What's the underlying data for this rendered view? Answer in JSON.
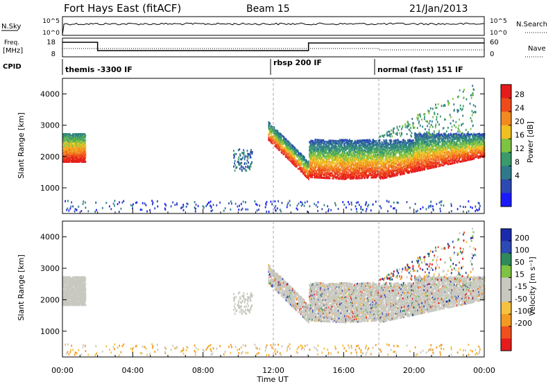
{
  "header": {
    "title": "Fort Hays East (fitACF)",
    "beam": "Beam 15",
    "date": "21/Jan/2013"
  },
  "colors": {
    "power_scale": [
      "#1a1aff",
      "#2d49b4",
      "#2f7a8a",
      "#3a9a6a",
      "#7dc241",
      "#f0c020",
      "#f28a20",
      "#ef4a1c",
      "#e61b1b"
    ],
    "velocity_scale": [
      "#e61b1b",
      "#f05020",
      "#f39a22",
      "#f6c040",
      "#c8c8c0",
      "#c8c8c0",
      "#7dc241",
      "#2f8a5a",
      "#2d49b4",
      "#1a2aaa"
    ],
    "ground_scatter": "#c8c8c0"
  },
  "top_panels": {
    "nsky": {
      "label": "N.Sky",
      "ticks": [
        "10^5",
        "10^0"
      ]
    },
    "nsearch": {
      "label": "N.Search",
      "ticks": [
        "10^5",
        "10^0"
      ]
    },
    "freq": {
      "label_line1": "Freq.",
      "label_line2": "[MHz]",
      "ticks": [
        "18",
        "8"
      ]
    },
    "nave": {
      "label": "Nave",
      "ticks": [
        "60",
        "0"
      ]
    },
    "cpid": {
      "label": "CPID",
      "segments": [
        {
          "start_hour": 0,
          "text": "themis -3300 IF"
        },
        {
          "start_hour": 12,
          "text": "rbsp 200 IF"
        },
        {
          "start_hour": 18,
          "text": "normal (fast) 151 IF"
        }
      ]
    }
  },
  "chart_data": [
    {
      "type": "heatmap",
      "name": "Power",
      "ylabel": "Slant Range [km]",
      "yticks": [
        "4000",
        "3000",
        "2000",
        "1000"
      ],
      "ylim": [
        180,
        4500
      ],
      "xlim": [
        0,
        24
      ],
      "colorbar": {
        "label": "Power [dB]",
        "ticks": [
          "28",
          "24",
          "20",
          "16",
          "12",
          "8",
          "4"
        ],
        "range": [
          0,
          32
        ]
      }
    },
    {
      "type": "heatmap",
      "name": "Velocity",
      "ylabel": "Slant Range [km]",
      "yticks": [
        "4000",
        "3000",
        "2000",
        "1000"
      ],
      "ylim": [
        180,
        4500
      ],
      "xlim": [
        0,
        24
      ],
      "xlabel": "Time UT",
      "xticks": [
        "00:00",
        "04:00",
        "08:00",
        "12:00",
        "16:00",
        "20:00",
        "00:00"
      ],
      "colorbar": {
        "label": "Velocity [m s⁻¹]",
        "ticks": [
          "200",
          "100",
          "50",
          "15",
          "-15",
          "-50",
          "-100",
          "-200"
        ]
      }
    }
  ]
}
